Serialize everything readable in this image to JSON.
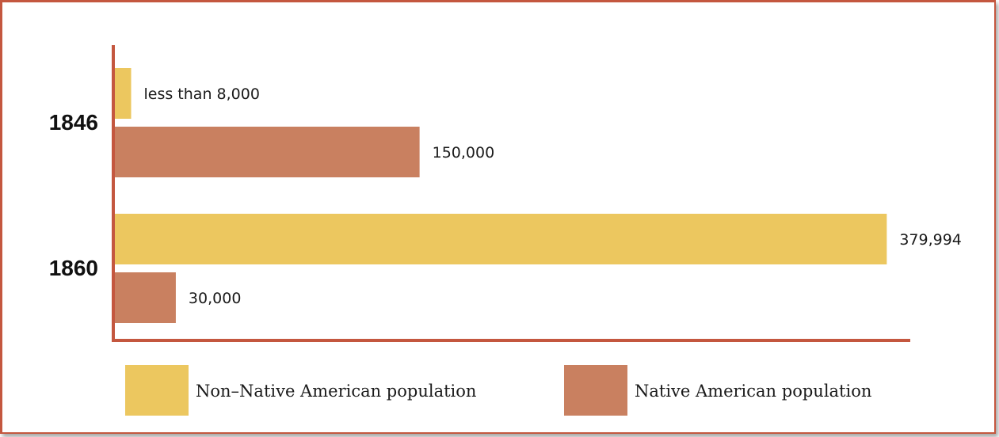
{
  "chart_data": {
    "type": "bar",
    "orientation": "horizontal",
    "categories": [
      "1846",
      "1860"
    ],
    "series": [
      {
        "name": "Non–Native American population",
        "values": [
          8000,
          379994
        ],
        "labels": [
          "less than 8,000",
          "379,994"
        ]
      },
      {
        "name": "Native American population",
        "values": [
          150000,
          30000
        ],
        "labels": [
          "150,000",
          "30,000"
        ]
      }
    ],
    "colors": [
      "#ecc75f",
      "#c98060"
    ],
    "axis_color": "#c4573f",
    "xlim": [
      0,
      390000
    ],
    "grid": false,
    "legend_position": "bottom"
  }
}
